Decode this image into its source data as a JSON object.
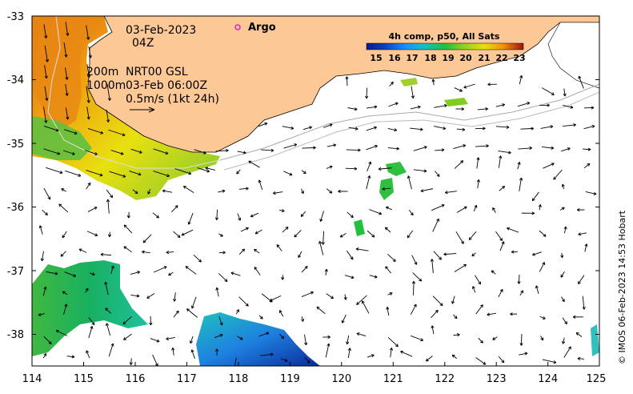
{
  "header": {
    "date": "03-Feb-2023",
    "hour": "04Z"
  },
  "annotations": {
    "depth_line1": "200m",
    "depth_line2": "1000m",
    "product_line1": "NRT00 GSL",
    "product_line2": "03-Feb 06:00Z",
    "scale_label": "0.5m/s (1kt 24h)"
  },
  "argo": {
    "label": "Argo",
    "marker_color": "#e020c0"
  },
  "legend": {
    "title": "4h comp, p50, All Sats",
    "ticks": [
      "15",
      "16",
      "17",
      "18",
      "19",
      "20",
      "21",
      "22",
      "23"
    ],
    "colors": [
      "#0a1a8a",
      "#1040c0",
      "#1e90ff",
      "#16c0c0",
      "#20c040",
      "#90d020",
      "#e8e010",
      "#f09010",
      "#e03010",
      "#a01010"
    ]
  },
  "axes": {
    "x_ticks": [
      "114",
      "115",
      "116",
      "117",
      "118",
      "119",
      "120",
      "121",
      "122",
      "123",
      "124",
      "125"
    ],
    "y_ticks": [
      "-33",
      "-34",
      "-35",
      "-36",
      "-37",
      "-38"
    ]
  },
  "credit": "© IMOS 06-Feb-2023 14:53 Hobart",
  "colors": {
    "land": "#fcc896",
    "ocean": "#ffffff"
  }
}
